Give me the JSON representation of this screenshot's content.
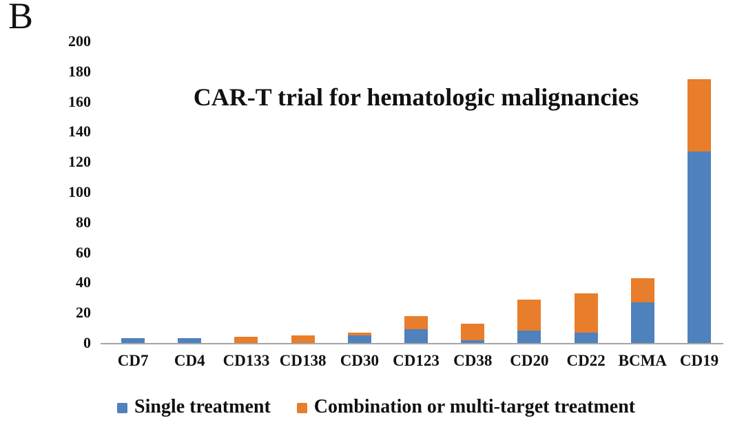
{
  "panel_label": "B",
  "chart_data": {
    "type": "bar",
    "stacked": true,
    "title": "CAR-T trial for hematologic malignancies",
    "categories": [
      "CD7",
      "CD4",
      "CD133",
      "CD138",
      "CD30",
      "CD123",
      "CD38",
      "CD20",
      "CD22",
      "BCMA",
      "CD19"
    ],
    "series": [
      {
        "name": "Single treatment",
        "color": "#4F81BD",
        "values": [
          3,
          3,
          0,
          0,
          5,
          9,
          2,
          8,
          7,
          27,
          127
        ]
      },
      {
        "name": "Combination or multi-target treatment",
        "color": "#E87D2B",
        "values": [
          0,
          0,
          4,
          5,
          2,
          9,
          11,
          21,
          26,
          16,
          48
        ]
      }
    ],
    "xlabel": "",
    "ylabel": "",
    "ylim": [
      0,
      200
    ],
    "yticks": [
      0,
      20,
      40,
      60,
      80,
      100,
      120,
      140,
      160,
      180,
      200
    ],
    "grid": false,
    "legend_position": "bottom",
    "axis_line_color": "#A6A6A6",
    "text_color": "#111111"
  }
}
